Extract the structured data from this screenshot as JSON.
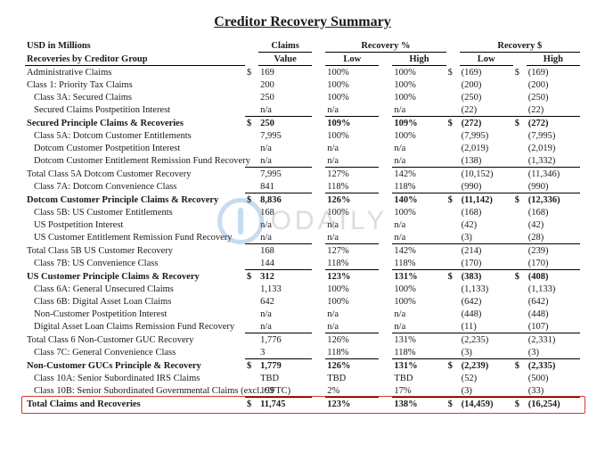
{
  "style": {
    "bg": "#ffffff",
    "text": "#1a1a1a",
    "title_fontsize": 16,
    "body_fontsize": 10.5,
    "font_family": "Times New Roman",
    "final_box_color": "#d43a2a",
    "watermark_color": "#3a7fc4",
    "watermark_text_color": "#7a8a99"
  },
  "title": "Creditor Recovery Summary",
  "unit_label": "USD in Millions",
  "header": {
    "group_label": "Recoveries by Creditor Group",
    "claims": "Claims",
    "recovery_pct": "Recovery %",
    "recovery_usd": "Recovery $",
    "value": "Value",
    "low": "Low",
    "high": "High"
  },
  "watermark": "ODAILY",
  "rows": [
    {
      "label": "Administrative Claims",
      "d1": "$",
      "claims": "169",
      "low_pct": "100%",
      "high_pct": "100%",
      "d2": "$",
      "low_usd": "(169)",
      "d3": "$",
      "high_usd": "(169)",
      "cls": ""
    },
    {
      "label": "Class 1: Priority Tax Claims",
      "claims": "200",
      "low_pct": "100%",
      "high_pct": "100%",
      "low_usd": "(200)",
      "high_usd": "(200)",
      "cls": ""
    },
    {
      "label": "Class 3A: Secured Claims",
      "claims": "250",
      "low_pct": "100%",
      "high_pct": "100%",
      "low_usd": "(250)",
      "high_usd": "(250)",
      "cls": "r-indent1"
    },
    {
      "label": "Secured Claims Postpetition Interest",
      "claims": "n/a",
      "low_pct": "n/a",
      "high_pct": "n/a",
      "low_usd": "(22)",
      "high_usd": "(22)",
      "cls": "r-indent1"
    },
    {
      "label": "Secured Principle Claims & Recoveries",
      "d1": "$",
      "claims": "250",
      "low_pct": "109%",
      "high_pct": "109%",
      "d2": "$",
      "low_usd": "(272)",
      "d3": "$",
      "high_usd": "(272)",
      "cls": "r-bold r-totline"
    },
    {
      "label": "Class 5A: Dotcom Customer Entitlements",
      "claims": "7,995",
      "low_pct": "100%",
      "high_pct": "100%",
      "low_usd": "(7,995)",
      "high_usd": "(7,995)",
      "cls": "r-indent1"
    },
    {
      "label": "Dotcom Customer Postpetition Interest",
      "claims": "n/a",
      "low_pct": "n/a",
      "high_pct": "n/a",
      "low_usd": "(2,019)",
      "high_usd": "(2,019)",
      "cls": "r-indent1"
    },
    {
      "label": "Dotcom Customer Entitlement Remission Fund Recovery",
      "claims": "n/a",
      "low_pct": "n/a",
      "high_pct": "n/a",
      "low_usd": "(138)",
      "high_usd": "(1,332)",
      "cls": "r-indent1"
    },
    {
      "label": "Total Class 5A Dotcom Customer Recovery",
      "claims": "7,995",
      "low_pct": "127%",
      "high_pct": "142%",
      "low_usd": "(10,152)",
      "high_usd": "(11,346)",
      "cls": "r-totline"
    },
    {
      "label": "Class 7A: Dotcom Convenience Class",
      "claims": "841",
      "low_pct": "118%",
      "high_pct": "118%",
      "low_usd": "(990)",
      "high_usd": "(990)",
      "cls": "r-indent1"
    },
    {
      "label": "Dotcom Customer Principle Claims & Recovery",
      "d1": "$",
      "claims": "8,836",
      "low_pct": "126%",
      "high_pct": "140%",
      "d2": "$",
      "low_usd": "(11,142)",
      "d3": "$",
      "high_usd": "(12,336)",
      "cls": "r-bold r-totline"
    },
    {
      "label": "Class 5B: US Customer Entitlements",
      "claims": "168",
      "low_pct": "100%",
      "high_pct": "100%",
      "low_usd": "(168)",
      "high_usd": "(168)",
      "cls": "r-indent1"
    },
    {
      "label": "US Postpetition Interest",
      "claims": "n/a",
      "low_pct": "n/a",
      "high_pct": "n/a",
      "low_usd": "(42)",
      "high_usd": "(42)",
      "cls": "r-indent1"
    },
    {
      "label": "US Customer Entitlement Remission Fund Recovery",
      "claims": "n/a",
      "low_pct": "n/a",
      "high_pct": "n/a",
      "low_usd": "(3)",
      "high_usd": "(28)",
      "cls": "r-indent1"
    },
    {
      "label": "Total Class 5B US Customer Recovery",
      "claims": "168",
      "low_pct": "127%",
      "high_pct": "142%",
      "low_usd": "(214)",
      "high_usd": "(239)",
      "cls": "r-totline"
    },
    {
      "label": "Class 7B: US Convenience Class",
      "claims": "144",
      "low_pct": "118%",
      "high_pct": "118%",
      "low_usd": "(170)",
      "high_usd": "(170)",
      "cls": "r-indent1"
    },
    {
      "label": "US Customer Principle Claims & Recovery",
      "d1": "$",
      "claims": "312",
      "low_pct": "123%",
      "high_pct": "131%",
      "d2": "$",
      "low_usd": "(383)",
      "d3": "$",
      "high_usd": "(408)",
      "cls": "r-bold r-totline"
    },
    {
      "label": "Class 6A: General Unsecured Claims",
      "claims": "1,133",
      "low_pct": "100%",
      "high_pct": "100%",
      "low_usd": "(1,133)",
      "high_usd": "(1,133)",
      "cls": "r-indent1"
    },
    {
      "label": "Class 6B: Digital Asset Loan Claims",
      "claims": "642",
      "low_pct": "100%",
      "high_pct": "100%",
      "low_usd": "(642)",
      "high_usd": "(642)",
      "cls": "r-indent1"
    },
    {
      "label": "Non-Customer Postpetition Interest",
      "claims": "n/a",
      "low_pct": "n/a",
      "high_pct": "n/a",
      "low_usd": "(448)",
      "high_usd": "(448)",
      "cls": "r-indent1"
    },
    {
      "label": "Digital Asset Loan Claims Remission Fund Recovery",
      "claims": "n/a",
      "low_pct": "n/a",
      "high_pct": "n/a",
      "low_usd": "(11)",
      "high_usd": "(107)",
      "cls": "r-indent1"
    },
    {
      "label": "Total Class 6 Non-Customer GUC Recovery",
      "claims": "1,776",
      "low_pct": "126%",
      "high_pct": "131%",
      "low_usd": "(2,235)",
      "high_usd": "(2,331)",
      "cls": "r-totline"
    },
    {
      "label": "Class 7C: General Convenience Class",
      "claims": "3",
      "low_pct": "118%",
      "high_pct": "118%",
      "low_usd": "(3)",
      "high_usd": "(3)",
      "cls": "r-indent1"
    },
    {
      "label": "Non-Customer GUCs Principle & Recovery",
      "d1": "$",
      "claims": "1,779",
      "low_pct": "126%",
      "high_pct": "131%",
      "d2": "$",
      "low_usd": "(2,239)",
      "d3": "$",
      "high_usd": "(2,335)",
      "cls": "r-bold r-totline"
    },
    {
      "label": "Class 10A: Senior Subordinated IRS Claims",
      "claims": "TBD",
      "low_pct": "TBD",
      "high_pct": "TBD",
      "low_usd": "(52)",
      "high_usd": "(500)",
      "cls": "r-indent1"
    },
    {
      "label": "Class 10B: Senior Subordinated Governmental Claims (excl. CFTC)",
      "claims": "199",
      "low_pct": "2%",
      "high_pct": "17%",
      "low_usd": "(3)",
      "high_usd": "(33)",
      "cls": "r-indent1"
    },
    {
      "label": "Total Claims and Recoveries",
      "d1": "$",
      "claims": "11,745",
      "low_pct": "123%",
      "high_pct": "138%",
      "d2": "$",
      "low_usd": "(14,459)",
      "d3": "$",
      "high_usd": "(16,254)",
      "cls": "final-row r-totline",
      "final": true
    }
  ]
}
